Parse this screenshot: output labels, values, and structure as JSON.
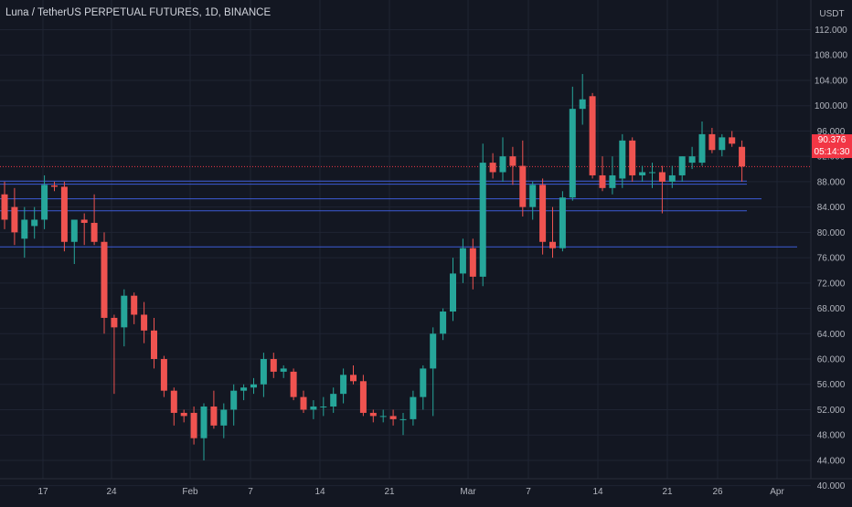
{
  "header": {
    "title": "Luna / TetherUS PERPETUAL FUTURES, 1D, BINANCE"
  },
  "price_axis": {
    "currency": "USDT",
    "last_price": "90.376",
    "countdown": "05:14:30"
  },
  "colors": {
    "background": "#131722",
    "grid": "#1f2433",
    "up": "#26a69a",
    "down": "#ef5350",
    "hline": "#3d5bd6",
    "last_price_line": "#f23645",
    "axis_text": "#b2b5be"
  },
  "chart_data": {
    "type": "candlestick",
    "symbol": "Luna / TetherUS PERPETUAL FUTURES",
    "interval": "1D",
    "exchange": "BINANCE",
    "y_ticks": [
      "112.000",
      "108.000",
      "104.000",
      "100.000",
      "96.000",
      "92.000",
      "88.000",
      "84.000",
      "80.000",
      "76.000",
      "72.000",
      "68.000",
      "64.000",
      "60.000",
      "56.000",
      "52.000",
      "48.000",
      "44.000",
      "40.000"
    ],
    "x_ticks": [
      "17",
      "24",
      "Feb",
      "7",
      "14",
      "21",
      "Mar",
      "7",
      "14",
      "21",
      "26",
      "Apr"
    ],
    "ylim": [
      37.5,
      113.5
    ],
    "horizontal_levels": [
      88.1,
      87.6,
      85.3,
      83.4,
      77.7
    ],
    "last_price": 90.376,
    "candles": [
      {
        "date": "Jan 12",
        "o": 86.0,
        "h": 88.0,
        "l": 80.5,
        "c": 82.0
      },
      {
        "date": "Jan 13",
        "o": 84.0,
        "h": 87.0,
        "l": 78.0,
        "c": 80.0
      },
      {
        "date": "Jan 14",
        "o": 79.0,
        "h": 84.0,
        "l": 76.0,
        "c": 82.0
      },
      {
        "date": "Jan 15",
        "o": 81.0,
        "h": 84.0,
        "l": 79.0,
        "c": 82.0
      },
      {
        "date": "Jan 16",
        "o": 82.0,
        "h": 89.0,
        "l": 80.5,
        "c": 87.5
      },
      {
        "date": "Jan 17",
        "o": 87.4,
        "h": 88.0,
        "l": 86.5,
        "c": 87.2
      },
      {
        "date": "Jan 18",
        "o": 87.2,
        "h": 88.0,
        "l": 77.0,
        "c": 78.5
      },
      {
        "date": "Jan 19",
        "o": 78.5,
        "h": 82.0,
        "l": 75.0,
        "c": 82.0
      },
      {
        "date": "Jan 20",
        "o": 82.0,
        "h": 83.0,
        "l": 78.0,
        "c": 81.5
      },
      {
        "date": "Jan 21",
        "o": 81.5,
        "h": 86.0,
        "l": 78.0,
        "c": 78.5
      },
      {
        "date": "Jan 22",
        "o": 78.5,
        "h": 80.0,
        "l": 64.0,
        "c": 66.5
      },
      {
        "date": "Jan 23",
        "o": 66.5,
        "h": 67.0,
        "l": 54.5,
        "c": 65.0
      },
      {
        "date": "Jan 24",
        "o": 65.0,
        "h": 71.0,
        "l": 62.0,
        "c": 70.0
      },
      {
        "date": "Jan 25",
        "o": 70.0,
        "h": 70.5,
        "l": 65.5,
        "c": 67.0
      },
      {
        "date": "Jan 26",
        "o": 67.0,
        "h": 69.0,
        "l": 62.5,
        "c": 64.5
      },
      {
        "date": "Jan 27",
        "o": 64.5,
        "h": 66.5,
        "l": 58.5,
        "c": 60.0
      },
      {
        "date": "Jan 28",
        "o": 60.0,
        "h": 60.5,
        "l": 54.0,
        "c": 55.0
      },
      {
        "date": "Jan 29",
        "o": 55.0,
        "h": 55.5,
        "l": 49.5,
        "c": 51.5
      },
      {
        "date": "Jan 30",
        "o": 51.5,
        "h": 52.0,
        "l": 50.0,
        "c": 51.0
      },
      {
        "date": "Jan 31",
        "o": 51.5,
        "h": 52.5,
        "l": 46.5,
        "c": 47.5
      },
      {
        "date": "Feb 1",
        "o": 47.5,
        "h": 53.0,
        "l": 44.0,
        "c": 52.5
      },
      {
        "date": "Feb 2",
        "o": 52.5,
        "h": 55.0,
        "l": 49.0,
        "c": 49.5
      },
      {
        "date": "Feb 3",
        "o": 49.5,
        "h": 53.0,
        "l": 47.5,
        "c": 52.0
      },
      {
        "date": "Feb 4",
        "o": 52.0,
        "h": 56.0,
        "l": 49.5,
        "c": 55.0
      },
      {
        "date": "Feb 5",
        "o": 55.0,
        "h": 56.0,
        "l": 53.5,
        "c": 55.5
      },
      {
        "date": "Feb 6",
        "o": 55.5,
        "h": 57.0,
        "l": 54.5,
        "c": 56.0
      },
      {
        "date": "Feb 7",
        "o": 56.0,
        "h": 61.0,
        "l": 54.0,
        "c": 60.0
      },
      {
        "date": "Feb 8",
        "o": 60.0,
        "h": 61.0,
        "l": 57.0,
        "c": 58.0
      },
      {
        "date": "Feb 9",
        "o": 58.0,
        "h": 59.0,
        "l": 57.0,
        "c": 58.5
      },
      {
        "date": "Feb 10",
        "o": 58.0,
        "h": 58.5,
        "l": 53.5,
        "c": 54.0
      },
      {
        "date": "Feb 11",
        "o": 54.0,
        "h": 55.0,
        "l": 51.5,
        "c": 52.0
      },
      {
        "date": "Feb 12",
        "o": 52.0,
        "h": 53.5,
        "l": 50.5,
        "c": 52.5
      },
      {
        "date": "Feb 13",
        "o": 52.5,
        "h": 54.0,
        "l": 51.0,
        "c": 52.5
      },
      {
        "date": "Feb 14",
        "o": 52.5,
        "h": 55.5,
        "l": 51.5,
        "c": 54.5
      },
      {
        "date": "Feb 15",
        "o": 54.5,
        "h": 58.5,
        "l": 53.0,
        "c": 57.5
      },
      {
        "date": "Feb 16",
        "o": 57.5,
        "h": 59.0,
        "l": 56.0,
        "c": 56.5
      },
      {
        "date": "Feb 17",
        "o": 56.5,
        "h": 57.5,
        "l": 51.0,
        "c": 51.5
      },
      {
        "date": "Feb 18",
        "o": 51.5,
        "h": 52.0,
        "l": 50.0,
        "c": 51.0
      },
      {
        "date": "Feb 19",
        "o": 51.0,
        "h": 52.0,
        "l": 50.0,
        "c": 51.0
      },
      {
        "date": "Feb 20",
        "o": 51.0,
        "h": 52.0,
        "l": 49.5,
        "c": 50.5
      },
      {
        "date": "Feb 21",
        "o": 50.5,
        "h": 51.5,
        "l": 48.0,
        "c": 50.5
      },
      {
        "date": "Feb 22",
        "o": 50.5,
        "h": 55.0,
        "l": 49.5,
        "c": 54.0
      },
      {
        "date": "Feb 23",
        "o": 54.0,
        "h": 59.0,
        "l": 52.0,
        "c": 58.5
      },
      {
        "date": "Feb 24",
        "o": 58.5,
        "h": 65.0,
        "l": 51.0,
        "c": 64.0
      },
      {
        "date": "Feb 25",
        "o": 64.0,
        "h": 68.0,
        "l": 63.0,
        "c": 67.5
      },
      {
        "date": "Feb 26",
        "o": 67.5,
        "h": 76.0,
        "l": 66.0,
        "c": 73.5
      },
      {
        "date": "Feb 27",
        "o": 73.5,
        "h": 79.0,
        "l": 72.0,
        "c": 77.5
      },
      {
        "date": "Feb 28",
        "o": 77.5,
        "h": 79.0,
        "l": 71.0,
        "c": 73.0
      },
      {
        "date": "Mar 1",
        "o": 73.0,
        "h": 94.0,
        "l": 71.5,
        "c": 91.0
      },
      {
        "date": "Mar 2",
        "o": 91.0,
        "h": 92.5,
        "l": 88.5,
        "c": 89.5
      },
      {
        "date": "Mar 3",
        "o": 89.5,
        "h": 95.0,
        "l": 88.0,
        "c": 92.0
      },
      {
        "date": "Mar 4",
        "o": 92.0,
        "h": 93.5,
        "l": 87.5,
        "c": 90.5
      },
      {
        "date": "Mar 5",
        "o": 90.5,
        "h": 94.5,
        "l": 82.5,
        "c": 84.0
      },
      {
        "date": "Mar 6",
        "o": 84.0,
        "h": 88.0,
        "l": 82.0,
        "c": 87.5
      },
      {
        "date": "Mar 7",
        "o": 87.5,
        "h": 88.5,
        "l": 76.5,
        "c": 78.5
      },
      {
        "date": "Mar 8",
        "o": 78.5,
        "h": 84.0,
        "l": 76.0,
        "c": 77.5
      },
      {
        "date": "Mar 9",
        "o": 77.5,
        "h": 86.5,
        "l": 77.0,
        "c": 85.5
      },
      {
        "date": "Mar 10",
        "o": 85.5,
        "h": 103.0,
        "l": 85.0,
        "c": 99.5
      },
      {
        "date": "Mar 11",
        "o": 99.5,
        "h": 105.0,
        "l": 97.0,
        "c": 101.0
      },
      {
        "date": "Mar 12",
        "o": 101.5,
        "h": 102.0,
        "l": 88.5,
        "c": 89.0
      },
      {
        "date": "Mar 13",
        "o": 89.0,
        "h": 92.0,
        "l": 86.5,
        "c": 87.0
      },
      {
        "date": "Mar 14",
        "o": 87.0,
        "h": 92.0,
        "l": 86.0,
        "c": 89.0
      },
      {
        "date": "Mar 15",
        "o": 88.5,
        "h": 95.5,
        "l": 87.0,
        "c": 94.5
      },
      {
        "date": "Mar 16",
        "o": 94.5,
        "h": 95.0,
        "l": 88.0,
        "c": 89.0
      },
      {
        "date": "Mar 17",
        "o": 89.0,
        "h": 90.5,
        "l": 88.0,
        "c": 89.5
      },
      {
        "date": "Mar 18",
        "o": 89.5,
        "h": 91.0,
        "l": 87.0,
        "c": 89.5
      },
      {
        "date": "Mar 19",
        "o": 89.5,
        "h": 90.5,
        "l": 83.0,
        "c": 88.0
      },
      {
        "date": "Mar 20",
        "o": 88.0,
        "h": 90.5,
        "l": 87.0,
        "c": 89.0
      },
      {
        "date": "Mar 21",
        "o": 89.0,
        "h": 92.0,
        "l": 88.0,
        "c": 92.0
      },
      {
        "date": "Mar 22",
        "o": 91.0,
        "h": 93.5,
        "l": 90.0,
        "c": 92.0
      },
      {
        "date": "Mar 23",
        "o": 91.0,
        "h": 97.5,
        "l": 90.5,
        "c": 95.5
      },
      {
        "date": "Mar 24",
        "o": 95.5,
        "h": 96.5,
        "l": 92.5,
        "c": 93.0
      },
      {
        "date": "Mar 25",
        "o": 93.0,
        "h": 95.5,
        "l": 92.0,
        "c": 95.0
      },
      {
        "date": "Mar 26",
        "o": 95.0,
        "h": 96.0,
        "l": 93.5,
        "c": 94.0
      },
      {
        "date": "Mar 27",
        "o": 93.5,
        "h": 94.5,
        "l": 88.0,
        "c": 90.4
      }
    ]
  }
}
